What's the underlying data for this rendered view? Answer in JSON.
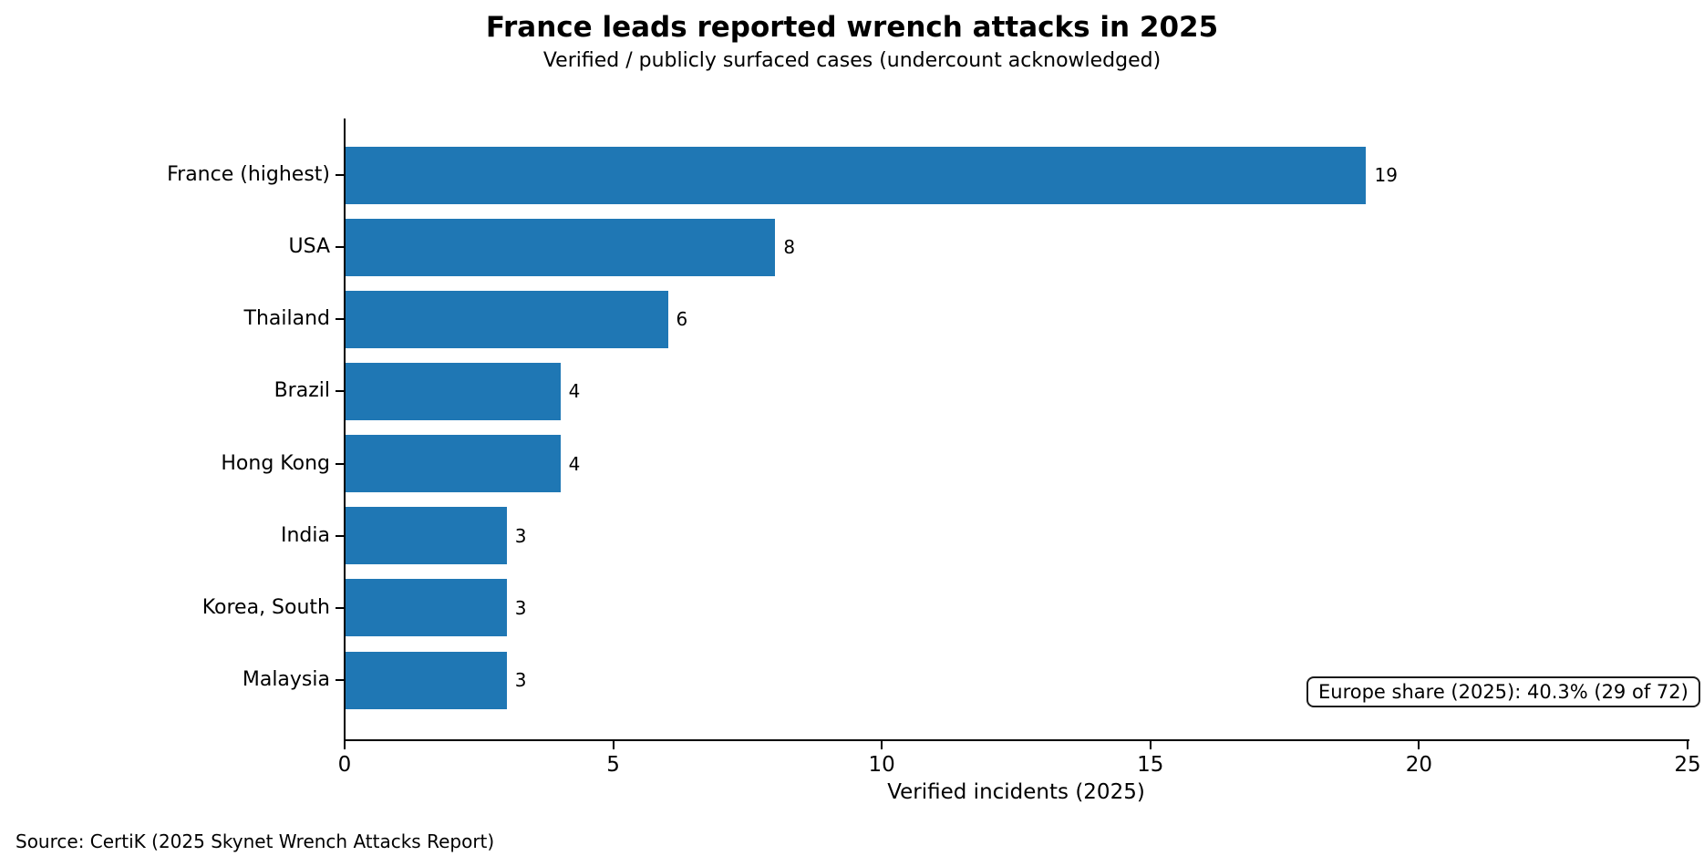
{
  "chart_data": {
    "type": "bar",
    "orientation": "horizontal",
    "title": "France leads reported wrench attacks in 2025",
    "subtitle": "Verified / publicly surfaced cases (undercount acknowledged)",
    "categories": [
      "France (highest)",
      "USA",
      "Thailand",
      "Brazil",
      "Hong Kong",
      "India",
      "Korea, South",
      "Malaysia"
    ],
    "values": [
      19,
      8,
      6,
      4,
      4,
      3,
      3,
      3
    ],
    "value_labels": [
      "19",
      "8",
      "6",
      "4",
      "4",
      "3",
      "3",
      "3"
    ],
    "xlabel": "Verified incidents (2025)",
    "xlim": [
      0,
      25
    ],
    "xticks": [
      0,
      5,
      10,
      15,
      20,
      25
    ],
    "xtick_labels": [
      "0",
      "5",
      "10",
      "15",
      "20",
      "25"
    ],
    "grid": false,
    "legend": null,
    "bar_color": "#1f77b4",
    "annotation": "Europe share (2025): 40.3% (29 of 72)",
    "source": "Source: CertiK (2025 Skynet Wrench Attacks Report)"
  }
}
